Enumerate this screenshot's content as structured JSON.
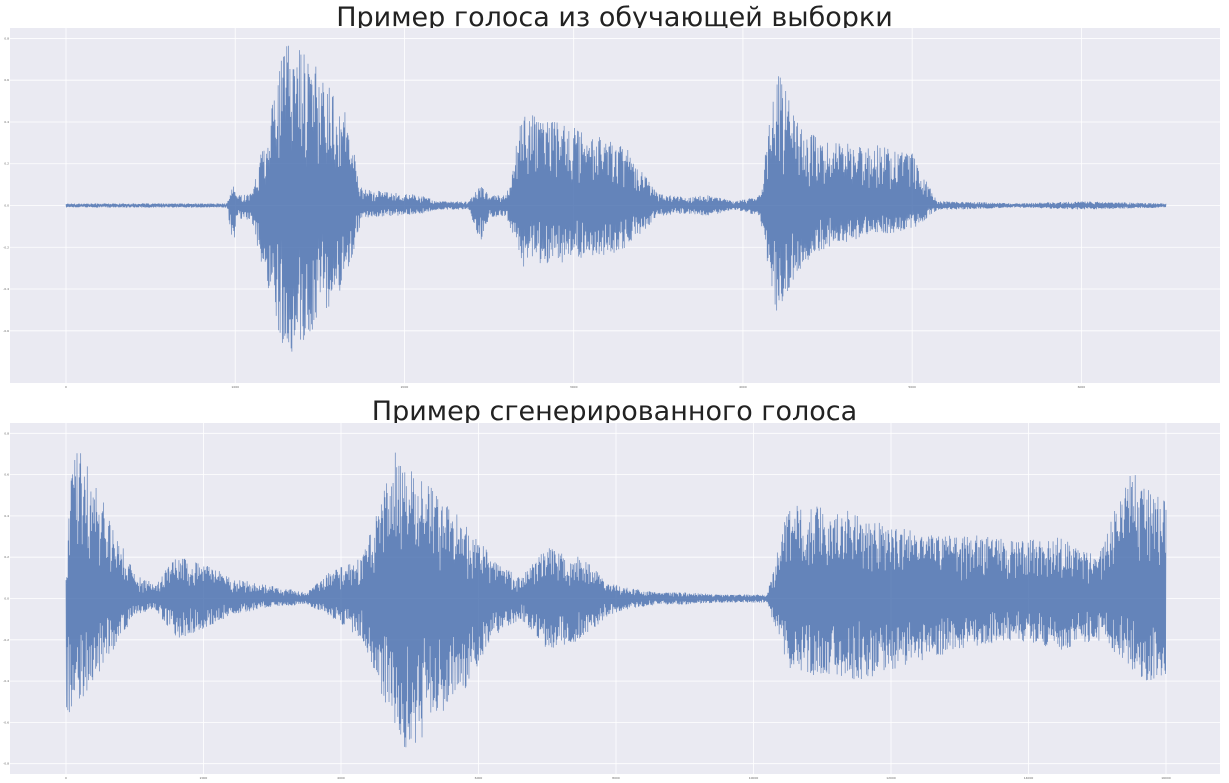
{
  "chart_data": [
    {
      "type": "line",
      "title": "Пример голоса из обучающей выборки",
      "xlabel": "",
      "ylabel": "",
      "xlim": [
        0,
        6500
      ],
      "ylim": [
        -0.85,
        0.85
      ],
      "grid": true,
      "background": "#EAEAF2",
      "line_color": "#4C72B0",
      "x_ticks": [
        "0",
        "1000",
        "2000",
        "3000",
        "4000",
        "5000",
        "6000"
      ],
      "y_ticks": [
        "0.8",
        "0.6",
        "0.4",
        "0.2",
        "0.0",
        "-0.2",
        "-0.4",
        "-0.6"
      ],
      "series": [
        {
          "envelope": {
            "x": [
              0,
              950,
              990,
              1010,
              1100,
              1200,
              1300,
              1400,
              1500,
              1650,
              1750,
              1950,
              2100,
              2200,
              2380,
              2450,
              2500,
              2600,
              2700,
              2800,
              2900,
              3100,
              3300,
              3500,
              3650,
              3800,
              3950,
              4100,
              4200,
              4300,
              4400,
              4500,
              4750,
              5000,
              5150,
              5300,
              5600,
              6000,
              6500
            ],
            "upper": [
              0.01,
              0.01,
              0.1,
              0.05,
              0.06,
              0.45,
              0.8,
              0.75,
              0.65,
              0.45,
              0.08,
              0.06,
              0.05,
              0.02,
              0.02,
              0.1,
              0.05,
              0.05,
              0.45,
              0.43,
              0.4,
              0.35,
              0.3,
              0.06,
              0.04,
              0.05,
              0.02,
              0.05,
              0.66,
              0.45,
              0.35,
              0.3,
              0.3,
              0.25,
              0.02,
              0.02,
              0.01,
              0.02,
              0.01
            ],
            "lower": [
              -0.01,
              -0.01,
              -0.2,
              -0.06,
              -0.08,
              -0.45,
              -0.72,
              -0.68,
              -0.55,
              -0.38,
              -0.06,
              -0.05,
              -0.04,
              -0.02,
              -0.02,
              -0.18,
              -0.06,
              -0.05,
              -0.3,
              -0.28,
              -0.28,
              -0.25,
              -0.22,
              -0.05,
              -0.04,
              -0.05,
              -0.02,
              -0.05,
              -0.55,
              -0.35,
              -0.25,
              -0.2,
              -0.15,
              -0.12,
              -0.02,
              -0.02,
              -0.01,
              -0.02,
              -0.01
            ]
          }
        }
      ]
    },
    {
      "type": "line",
      "title": "Пример сгенерированного голоса",
      "xlabel": "",
      "ylabel": "",
      "xlim": [
        0,
        16000
      ],
      "ylim": [
        -0.85,
        0.85
      ],
      "grid": true,
      "background": "#EAEAF2",
      "line_color": "#4C72B0",
      "x_ticks": [
        "0",
        "2000",
        "4000",
        "6000",
        "8000",
        "10000",
        "12000",
        "14000",
        "16000"
      ],
      "y_ticks": [
        "0.8",
        "0.6",
        "0.4",
        "0.2",
        "0.0",
        "-0.2",
        "-0.4",
        "-0.6",
        "-0.8"
      ],
      "series": [
        {
          "envelope": {
            "x": [
              0,
              100,
              300,
              600,
              1000,
              1300,
              1600,
              2000,
              2400,
              3000,
              3500,
              3800,
              4300,
              4800,
              5000,
              5300,
              5800,
              6200,
              6600,
              7000,
              7500,
              7900,
              8200,
              8600,
              9000,
              9500,
              10200,
              10500,
              11000,
              11500,
              12000,
              12500,
              13000,
              13800,
              14500,
              15000,
              15500,
              15800,
              16000
            ],
            "upper": [
              0.15,
              0.8,
              0.7,
              0.42,
              0.12,
              0.08,
              0.2,
              0.18,
              0.1,
              0.06,
              0.03,
              0.12,
              0.2,
              0.72,
              0.65,
              0.55,
              0.38,
              0.2,
              0.1,
              0.25,
              0.2,
              0.08,
              0.05,
              0.03,
              0.03,
              0.02,
              0.02,
              0.45,
              0.45,
              0.42,
              0.35,
              0.32,
              0.32,
              0.28,
              0.3,
              0.2,
              0.65,
              0.5,
              0.5
            ],
            "lower": [
              -0.7,
              -0.5,
              -0.48,
              -0.3,
              -0.08,
              -0.05,
              -0.2,
              -0.15,
              -0.08,
              -0.04,
              -0.03,
              -0.08,
              -0.2,
              -0.65,
              -0.78,
              -0.6,
              -0.45,
              -0.2,
              -0.1,
              -0.25,
              -0.2,
              -0.08,
              -0.05,
              -0.03,
              -0.03,
              -0.02,
              -0.02,
              -0.35,
              -0.38,
              -0.4,
              -0.35,
              -0.3,
              -0.25,
              -0.2,
              -0.25,
              -0.2,
              -0.35,
              -0.42,
              -0.4
            ]
          }
        }
      ]
    }
  ]
}
